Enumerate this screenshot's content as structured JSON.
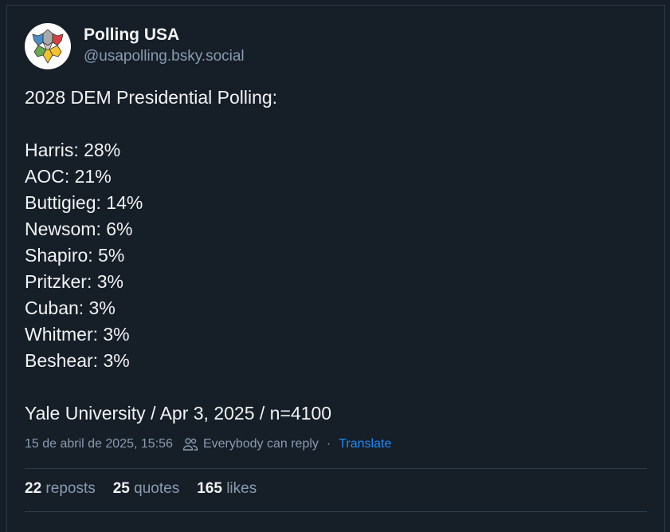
{
  "author": {
    "name": "Polling USA",
    "handle": "@usapolling.bsky.social",
    "avatar_icon": "star-logo-icon"
  },
  "post": {
    "text": "2028 DEM Presidential Polling:\n\nHarris: 28%\nAOC: 21%\nButtigieg: 14%\nNewsom: 6%\nShapiro: 5%\nPritzker: 3%\nCuban: 3%\nWhitmer: 3%\nBeshear: 3%\n\nYale University / Apr 3, 2025 / n=4100"
  },
  "meta": {
    "timestamp": "15 de abril de 2025, 15:56",
    "reply_setting": "Everybody can reply",
    "dot": "·",
    "translate": "Translate"
  },
  "stats": {
    "reposts_count": "22",
    "reposts_label": "reposts",
    "quotes_count": "25",
    "quotes_label": "quotes",
    "likes_count": "165",
    "likes_label": "likes"
  },
  "colors": {
    "background": "#161e27",
    "link": "#208bfe",
    "muted": "#8a9bb0",
    "border": "#2e3c4a"
  }
}
